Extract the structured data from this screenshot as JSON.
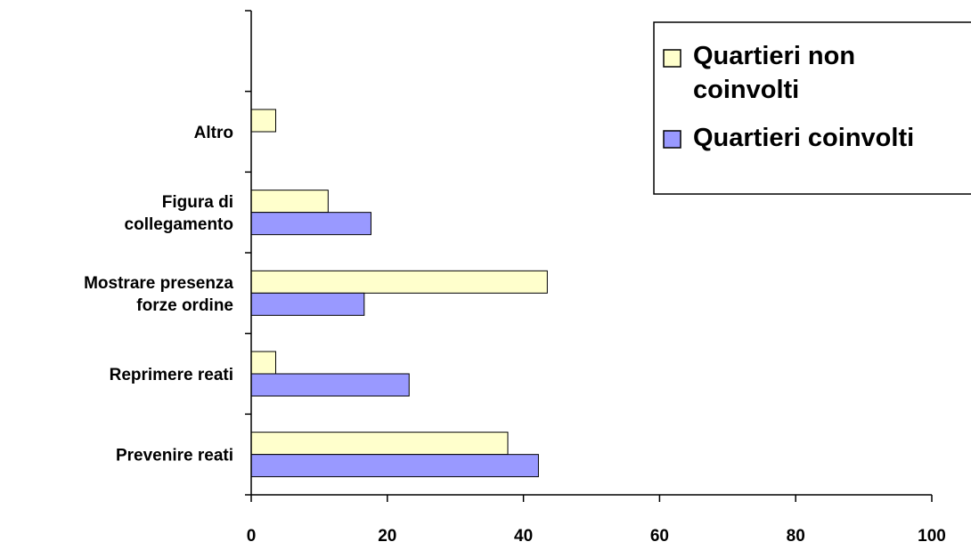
{
  "chart_data": {
    "type": "bar",
    "orientation": "horizontal",
    "categories": [
      [
        "Prevenire reati"
      ],
      [
        "Reprimere reati"
      ],
      [
        "Mostrare presenza",
        "forze ordine"
      ],
      [
        "Figura di",
        "collegamento"
      ],
      [
        "Altro"
      ],
      [
        ""
      ]
    ],
    "series": [
      {
        "name": "Quartieri non coinvolti",
        "legend_lines": [
          "Quartieri non",
          "coinvolti"
        ],
        "color": "#FFFFCC",
        "values": [
          37.7,
          3.6,
          43.5,
          11.3,
          3.6,
          null
        ]
      },
      {
        "name": "Quartieri coinvolti",
        "legend_lines": [
          "Quartieri coinvolti"
        ],
        "color": "#9999FF",
        "values": [
          42.2,
          23.2,
          16.6,
          17.6,
          null,
          null
        ]
      }
    ],
    "xlim": [
      0,
      100
    ],
    "x_ticks": [
      "0",
      "20",
      "40",
      "60",
      "80",
      "100"
    ],
    "grid": false,
    "legend_position": "top-right",
    "axis_color": "#000000",
    "bar_stroke": "#000000"
  }
}
